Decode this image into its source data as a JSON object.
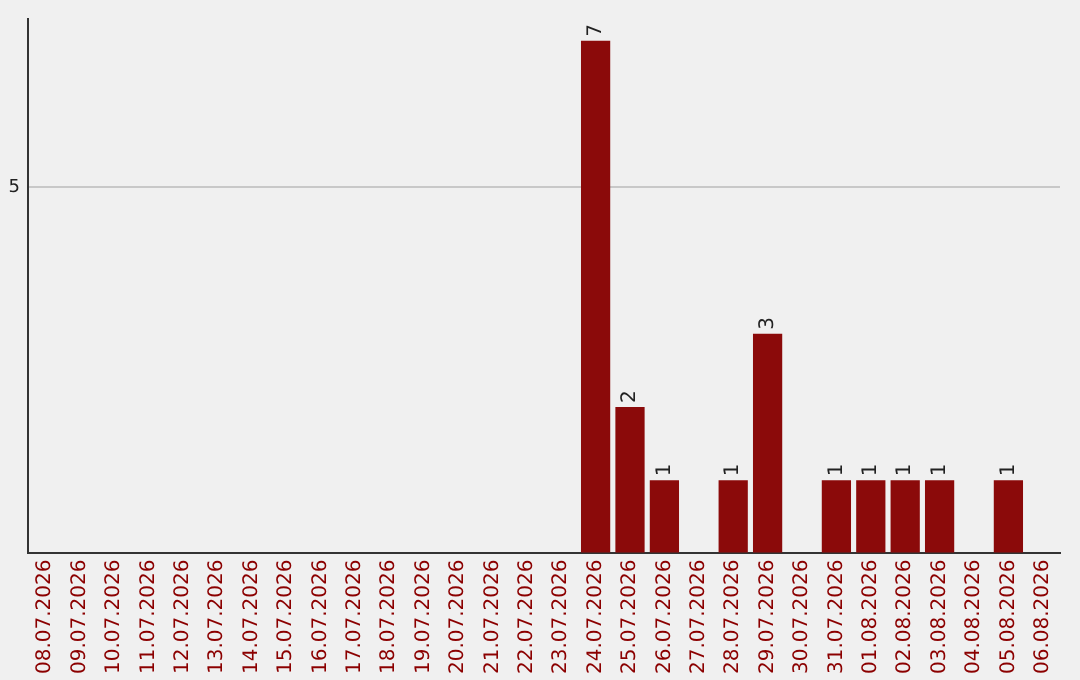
{
  "chart_data": {
    "type": "bar",
    "categories": [
      "08.07.2026",
      "09.07.2026",
      "10.07.2026",
      "11.07.2026",
      "12.07.2026",
      "13.07.2026",
      "14.07.2026",
      "15.07.2026",
      "16.07.2026",
      "17.07.2026",
      "18.07.2026",
      "19.07.2026",
      "20.07.2026",
      "21.07.2026",
      "22.07.2026",
      "23.07.2026",
      "24.07.2026",
      "25.07.2026",
      "26.07.2026",
      "27.07.2026",
      "28.07.2026",
      "29.07.2026",
      "30.07.2026",
      "31.07.2026",
      "01.08.2026",
      "02.08.2026",
      "03.08.2026",
      "04.08.2026",
      "05.08.2026",
      "06.08.2026"
    ],
    "values": [
      null,
      null,
      null,
      null,
      null,
      null,
      null,
      null,
      null,
      null,
      null,
      null,
      null,
      null,
      null,
      null,
      7,
      2,
      1,
      null,
      1,
      3,
      null,
      1,
      1,
      1,
      1,
      null,
      1,
      null
    ],
    "value_labels": [
      null,
      null,
      null,
      null,
      null,
      null,
      null,
      null,
      null,
      null,
      null,
      null,
      null,
      null,
      null,
      null,
      "7",
      "2",
      "1",
      null,
      "1",
      "3",
      null,
      "1",
      "1",
      "1",
      "1",
      null,
      "1",
      null
    ],
    "color": "#8b0a0a",
    "ylim": [
      0,
      7.3
    ],
    "yticks": [
      {
        "value": 0,
        "label": null
      },
      5
    ],
    "grid": "y",
    "legend": false
  }
}
